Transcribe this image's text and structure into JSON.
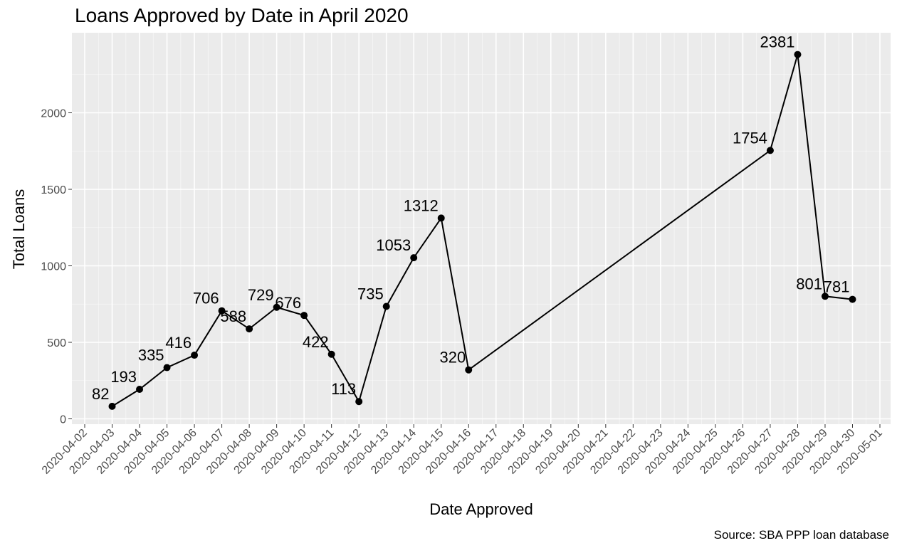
{
  "chart_data": {
    "type": "line",
    "title": "Loans Approved by Date in April 2020",
    "xlabel": "Date Approved",
    "ylabel": "Total Loans",
    "caption": "Source: SBA PPP loan database",
    "xlim": [
      "2020-04-02",
      "2020-05-01"
    ],
    "ylim": [
      0,
      2450
    ],
    "y_ticks": [
      0,
      500,
      1000,
      1500,
      2000
    ],
    "x_ticks": [
      "2020-04-02",
      "2020-04-03",
      "2020-04-04",
      "2020-04-05",
      "2020-04-06",
      "2020-04-07",
      "2020-04-08",
      "2020-04-09",
      "2020-04-10",
      "2020-04-11",
      "2020-04-12",
      "2020-04-13",
      "2020-04-14",
      "2020-04-15",
      "2020-04-16",
      "2020-04-17",
      "2020-04-18",
      "2020-04-19",
      "2020-04-20",
      "2020-04-21",
      "2020-04-22",
      "2020-04-23",
      "2020-04-24",
      "2020-04-25",
      "2020-04-26",
      "2020-04-27",
      "2020-04-28",
      "2020-04-29",
      "2020-04-30",
      "2020-05-01"
    ],
    "grid": true,
    "points": [
      {
        "x": "2020-04-03",
        "y": 82
      },
      {
        "x": "2020-04-04",
        "y": 193
      },
      {
        "x": "2020-04-05",
        "y": 335
      },
      {
        "x": "2020-04-06",
        "y": 416
      },
      {
        "x": "2020-04-07",
        "y": 706
      },
      {
        "x": "2020-04-08",
        "y": 588
      },
      {
        "x": "2020-04-09",
        "y": 729
      },
      {
        "x": "2020-04-10",
        "y": 676
      },
      {
        "x": "2020-04-11",
        "y": 422
      },
      {
        "x": "2020-04-12",
        "y": 113
      },
      {
        "x": "2020-04-13",
        "y": 735
      },
      {
        "x": "2020-04-14",
        "y": 1053
      },
      {
        "x": "2020-04-15",
        "y": 1312
      },
      {
        "x": "2020-04-16",
        "y": 320
      },
      {
        "x": "2020-04-27",
        "y": 1754
      },
      {
        "x": "2020-04-28",
        "y": 2381
      },
      {
        "x": "2020-04-29",
        "y": 801
      },
      {
        "x": "2020-04-30",
        "y": 781
      }
    ],
    "colors": {
      "panel": "#ebebeb",
      "grid": "#ffffff",
      "line": "#000000",
      "point": "#000000"
    }
  }
}
